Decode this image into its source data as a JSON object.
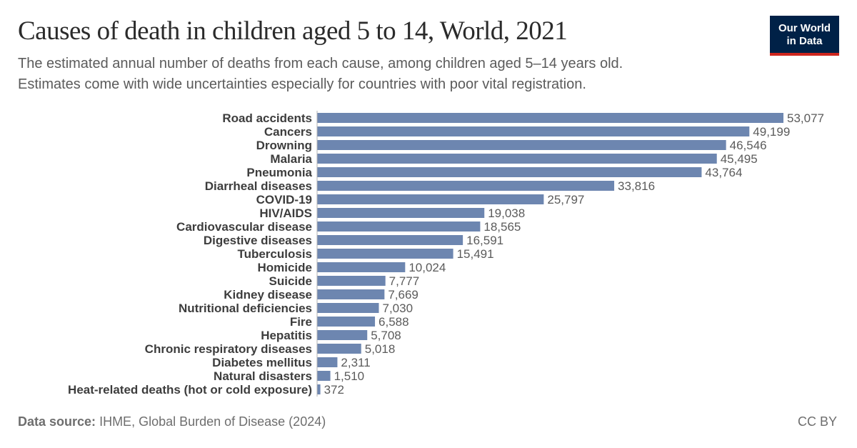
{
  "header": {
    "title": "Causes of death in children aged 5 to 14, World, 2021",
    "subtitle_line1": "The estimated annual number of deaths from each cause, among children aged 5–14 years old.",
    "subtitle_line2": "Estimates come with wide uncertainties especially for countries with poor vital registration.",
    "logo_line1": "Our World",
    "logo_line2": "in Data"
  },
  "footer": {
    "source_label": "Data source:",
    "source_text": "IHME, Global Burden of Disease (2024)",
    "license": "CC BY"
  },
  "colors": {
    "bar": "#6d86b0",
    "axis": "#b3b3b3",
    "label": "#3d3d3d",
    "value": "#5b5b5b"
  },
  "chart_data": {
    "type": "bar",
    "orientation": "horizontal",
    "categories": [
      "Road accidents",
      "Cancers",
      "Drowning",
      "Malaria",
      "Pneumonia",
      "Diarrheal diseases",
      "COVID-19",
      "HIV/AIDS",
      "Cardiovascular disease",
      "Digestive diseases",
      "Tuberculosis",
      "Homicide",
      "Suicide",
      "Kidney disease",
      "Nutritional deficiencies",
      "Fire",
      "Hepatitis",
      "Chronic respiratory diseases",
      "Diabetes mellitus",
      "Natural disasters",
      "Heat-related deaths (hot or cold exposure)"
    ],
    "values": [
      53077,
      49199,
      46546,
      45495,
      43764,
      33816,
      25797,
      19038,
      18565,
      16591,
      15491,
      10024,
      7777,
      7669,
      7030,
      6588,
      5708,
      5018,
      2311,
      1510,
      372
    ],
    "value_labels": [
      "53,077",
      "49,199",
      "46,546",
      "45,495",
      "43,764",
      "33,816",
      "25,797",
      "19,038",
      "18,565",
      "16,591",
      "15,491",
      "10,024",
      "7,777",
      "7,669",
      "7,030",
      "6,588",
      "5,708",
      "5,018",
      "2,311",
      "1,510",
      "372"
    ],
    "xlim": [
      0,
      53077
    ],
    "grid": false,
    "data_labels": true
  }
}
